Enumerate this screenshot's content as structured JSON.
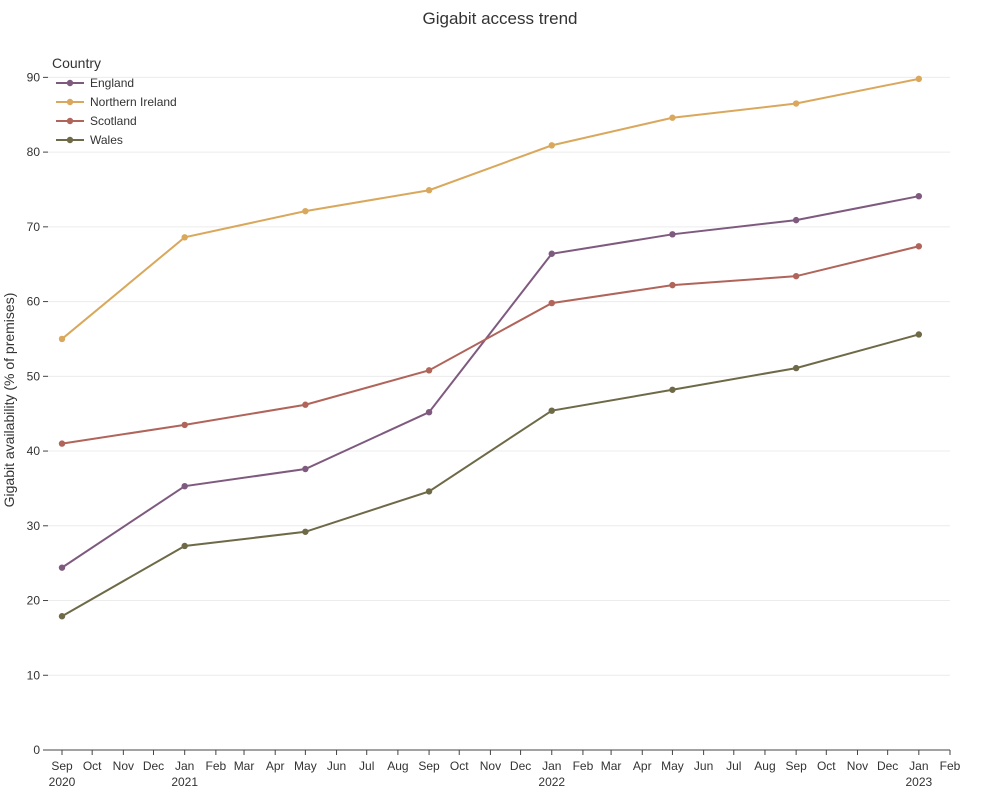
{
  "chart_data": {
    "type": "line",
    "title": "Gigabit access trend",
    "xlabel": "",
    "ylabel": "Gigabit availability (% of premises)",
    "ylim": [
      0,
      95
    ],
    "yticks": [
      0,
      10,
      20,
      30,
      40,
      50,
      60,
      70,
      80,
      90
    ],
    "xlim": [
      "2020-09-01",
      "2023-02-01"
    ],
    "x_tick_labels": [
      {
        "date": "2020-09-01",
        "month": "Sep",
        "year": "2020"
      },
      {
        "date": "2020-10-01",
        "month": "Oct"
      },
      {
        "date": "2020-11-01",
        "month": "Nov"
      },
      {
        "date": "2020-12-01",
        "month": "Dec"
      },
      {
        "date": "2021-01-01",
        "month": "Jan",
        "year": "2021"
      },
      {
        "date": "2021-02-01",
        "month": "Feb"
      },
      {
        "date": "2021-03-01",
        "month": "Mar"
      },
      {
        "date": "2021-04-01",
        "month": "Apr"
      },
      {
        "date": "2021-05-01",
        "month": "May"
      },
      {
        "date": "2021-06-01",
        "month": "Jun"
      },
      {
        "date": "2021-07-01",
        "month": "Jul"
      },
      {
        "date": "2021-08-01",
        "month": "Aug"
      },
      {
        "date": "2021-09-01",
        "month": "Sep"
      },
      {
        "date": "2021-10-01",
        "month": "Oct"
      },
      {
        "date": "2021-11-01",
        "month": "Nov"
      },
      {
        "date": "2021-12-01",
        "month": "Dec"
      },
      {
        "date": "2022-01-01",
        "month": "Jan",
        "year": "2022"
      },
      {
        "date": "2022-02-01",
        "month": "Feb"
      },
      {
        "date": "2022-03-01",
        "month": "Mar"
      },
      {
        "date": "2022-04-01",
        "month": "Apr"
      },
      {
        "date": "2022-05-01",
        "month": "May"
      },
      {
        "date": "2022-06-01",
        "month": "Jun"
      },
      {
        "date": "2022-07-01",
        "month": "Jul"
      },
      {
        "date": "2022-08-01",
        "month": "Aug"
      },
      {
        "date": "2022-09-01",
        "month": "Sep"
      },
      {
        "date": "2022-10-01",
        "month": "Oct"
      },
      {
        "date": "2022-11-01",
        "month": "Nov"
      },
      {
        "date": "2022-12-01",
        "month": "Dec"
      },
      {
        "date": "2023-01-01",
        "month": "Jan",
        "year": "2023"
      },
      {
        "date": "2023-02-01",
        "month": "Feb"
      }
    ],
    "x": [
      "2020-09-01",
      "2021-01-01",
      "2021-05-01",
      "2021-09-01",
      "2022-01-01",
      "2022-05-01",
      "2022-09-01",
      "2023-01-01"
    ],
    "series": [
      {
        "name": "England",
        "color": "#7f5a7f",
        "values": [
          24.4,
          35.3,
          37.6,
          45.2,
          66.4,
          69.0,
          70.9,
          74.1
        ]
      },
      {
        "name": "Northern Ireland",
        "color": "#d9a85c",
        "values": [
          55.0,
          68.6,
          72.1,
          74.9,
          80.9,
          84.6,
          86.5,
          89.8
        ]
      },
      {
        "name": "Scotland",
        "color": "#b0645a",
        "values": [
          41.0,
          43.5,
          46.2,
          50.8,
          59.8,
          62.2,
          63.4,
          67.4
        ]
      },
      {
        "name": "Wales",
        "color": "#6e6a48",
        "values": [
          17.9,
          27.3,
          29.2,
          34.6,
          45.4,
          48.2,
          51.1,
          55.6
        ]
      }
    ],
    "legend": {
      "title": "Country",
      "placement": "top-left"
    },
    "grid": true
  }
}
